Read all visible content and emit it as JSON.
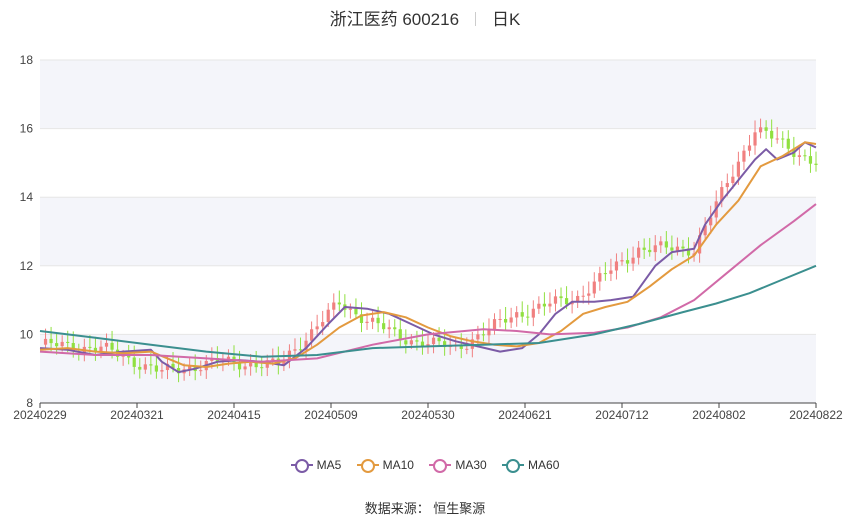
{
  "header": {
    "stock": "浙江医药 600216",
    "period": "日K"
  },
  "source": "数据来源： 恒生聚源",
  "colors": {
    "up": "#f08080",
    "down": "#90e040",
    "MA5": "#7b5ba6",
    "MA10": "#e39a3f",
    "MA30": "#d16aa8",
    "MA60": "#3b8f8f",
    "grid": "#e6e6e6",
    "band": "#f4f5fa"
  },
  "chart_data": {
    "type": "candlestick",
    "xlabels": [
      "20240229",
      "20240321",
      "20240415",
      "20240509",
      "20240530",
      "20240621",
      "20240712",
      "20240802",
      "20240822"
    ],
    "ylim": [
      8,
      18
    ],
    "yticks": [
      8,
      10,
      12,
      14,
      16,
      18
    ],
    "grid": true,
    "legend_position": "bottom",
    "key_points": [
      {
        "date": "20240229",
        "close": 9.7
      },
      {
        "date": "20240321",
        "close": 9.6
      },
      {
        "date": "20240328",
        "close": 8.9
      },
      {
        "date": "20240415",
        "close": 9.2
      },
      {
        "date": "20240426",
        "close": 9.1
      },
      {
        "date": "20240509",
        "close": 10.9
      },
      {
        "date": "20240530",
        "close": 9.9
      },
      {
        "date": "20240617",
        "close": 9.6
      },
      {
        "date": "20240621",
        "close": 10.6
      },
      {
        "date": "20240712",
        "close": 11.1
      },
      {
        "date": "20240725",
        "close": 12.5
      },
      {
        "date": "20240802",
        "close": 12.5
      },
      {
        "date": "20240815",
        "close": 16.0
      },
      {
        "date": "20240822",
        "close": 15.0
      }
    ],
    "series": [
      {
        "name": "MA5",
        "points": [
          [
            0,
            9.6
          ],
          [
            5,
            9.55
          ],
          [
            10,
            9.4
          ],
          [
            15,
            9.5
          ],
          [
            20,
            9.55
          ],
          [
            22,
            9.2
          ],
          [
            25,
            8.9
          ],
          [
            28,
            9.0
          ],
          [
            32,
            9.2
          ],
          [
            36,
            9.25
          ],
          [
            40,
            9.2
          ],
          [
            44,
            9.1
          ],
          [
            48,
            9.6
          ],
          [
            52,
            10.3
          ],
          [
            55,
            10.8
          ],
          [
            59,
            10.75
          ],
          [
            63,
            10.6
          ],
          [
            67,
            10.3
          ],
          [
            71,
            10.0
          ],
          [
            75,
            9.8
          ],
          [
            79,
            9.65
          ],
          [
            83,
            9.5
          ],
          [
            87,
            9.6
          ],
          [
            90,
            10.0
          ],
          [
            93,
            10.6
          ],
          [
            96,
            10.95
          ],
          [
            100,
            10.95
          ],
          [
            103,
            11.0
          ],
          [
            107,
            11.1
          ],
          [
            111,
            12.0
          ],
          [
            114,
            12.4
          ],
          [
            118,
            12.5
          ],
          [
            120,
            13.2
          ],
          [
            123,
            13.9
          ],
          [
            126,
            14.5
          ],
          [
            129,
            15.1
          ],
          [
            131,
            15.4
          ],
          [
            133,
            15.1
          ],
          [
            136,
            15.3
          ],
          [
            138,
            15.6
          ],
          [
            140,
            15.45
          ]
        ]
      },
      {
        "name": "MA10",
        "points": [
          [
            0,
            9.55
          ],
          [
            5,
            9.6
          ],
          [
            10,
            9.5
          ],
          [
            15,
            9.45
          ],
          [
            20,
            9.5
          ],
          [
            23,
            9.3
          ],
          [
            26,
            9.1
          ],
          [
            30,
            9.05
          ],
          [
            34,
            9.15
          ],
          [
            38,
            9.2
          ],
          [
            42,
            9.15
          ],
          [
            46,
            9.3
          ],
          [
            50,
            9.7
          ],
          [
            54,
            10.2
          ],
          [
            58,
            10.55
          ],
          [
            62,
            10.65
          ],
          [
            66,
            10.5
          ],
          [
            70,
            10.2
          ],
          [
            74,
            9.95
          ],
          [
            78,
            9.8
          ],
          [
            82,
            9.7
          ],
          [
            86,
            9.65
          ],
          [
            90,
            9.75
          ],
          [
            94,
            10.1
          ],
          [
            98,
            10.6
          ],
          [
            102,
            10.8
          ],
          [
            106,
            10.95
          ],
          [
            110,
            11.4
          ],
          [
            114,
            11.9
          ],
          [
            118,
            12.3
          ],
          [
            122,
            13.2
          ],
          [
            126,
            13.9
          ],
          [
            130,
            14.9
          ],
          [
            134,
            15.2
          ],
          [
            138,
            15.6
          ],
          [
            140,
            15.55
          ]
        ]
      },
      {
        "name": "MA30",
        "points": [
          [
            0,
            9.5
          ],
          [
            10,
            9.4
          ],
          [
            20,
            9.4
          ],
          [
            30,
            9.3
          ],
          [
            40,
            9.2
          ],
          [
            50,
            9.3
          ],
          [
            60,
            9.7
          ],
          [
            70,
            10.0
          ],
          [
            80,
            10.15
          ],
          [
            86,
            10.1
          ],
          [
            92,
            10.0
          ],
          [
            100,
            10.05
          ],
          [
            106,
            10.2
          ],
          [
            112,
            10.5
          ],
          [
            118,
            11.0
          ],
          [
            124,
            11.8
          ],
          [
            130,
            12.6
          ],
          [
            136,
            13.3
          ],
          [
            140,
            13.8
          ]
        ]
      },
      {
        "name": "MA60",
        "points": [
          [
            0,
            10.1
          ],
          [
            10,
            9.9
          ],
          [
            20,
            9.7
          ],
          [
            30,
            9.5
          ],
          [
            40,
            9.35
          ],
          [
            50,
            9.4
          ],
          [
            60,
            9.6
          ],
          [
            70,
            9.65
          ],
          [
            80,
            9.7
          ],
          [
            90,
            9.75
          ],
          [
            100,
            10.0
          ],
          [
            108,
            10.3
          ],
          [
            116,
            10.65
          ],
          [
            122,
            10.9
          ],
          [
            128,
            11.2
          ],
          [
            134,
            11.6
          ],
          [
            140,
            12.0
          ]
        ]
      }
    ]
  }
}
